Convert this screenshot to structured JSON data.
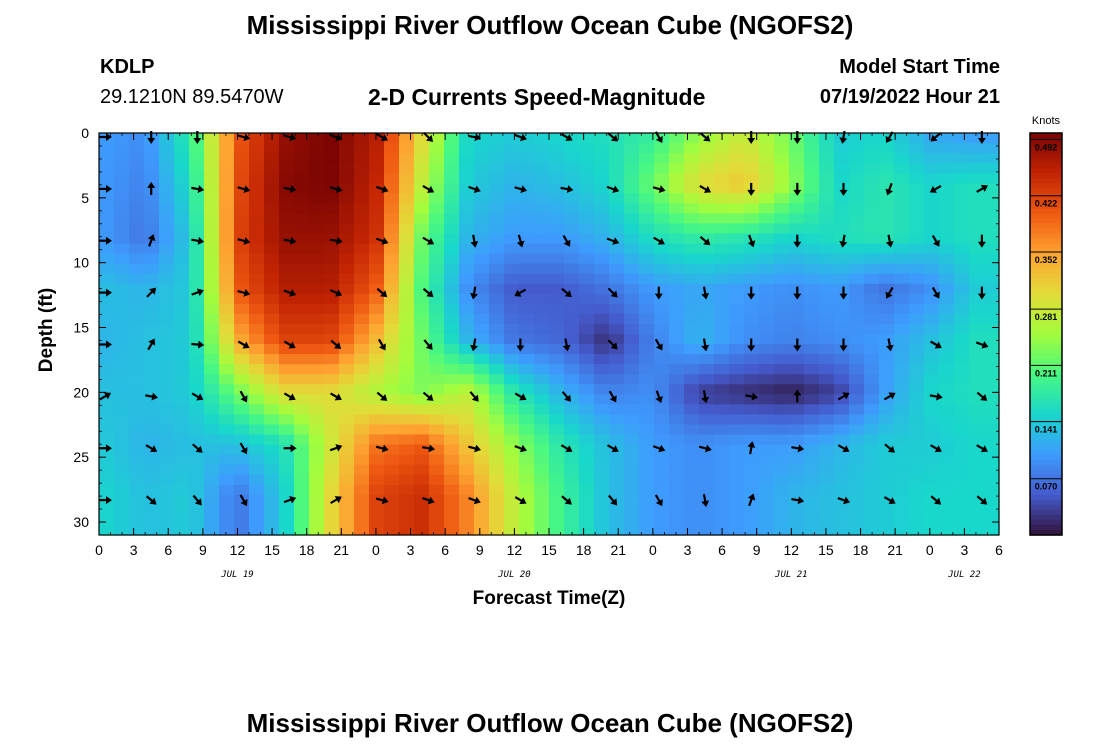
{
  "header": {
    "title": "Mississippi River Outflow Ocean Cube (NGOFS2)",
    "station": "KDLP",
    "coords": "29.1210N  89.5470W",
    "subtitle": "2-D Currents Speed-Magnitude",
    "model_start_label": "Model Start Time",
    "model_start_value": "07/19/2022 Hour 21",
    "footer_title": "Mississippi River Outflow Ocean Cube (NGOFS2)"
  },
  "chart_data": {
    "type": "heatmap",
    "title": "2-D Currents Speed-Magnitude",
    "xlabel": "Forecast Time(Z)",
    "ylabel": "Depth (ft)",
    "xlim": [
      0,
      78
    ],
    "ylim": [
      0,
      31
    ],
    "x_hours_start": 0,
    "x_tick_hours": [
      0,
      3,
      6,
      9,
      12,
      15,
      18,
      21,
      24,
      27,
      30,
      33,
      36,
      39,
      42,
      45,
      48,
      51,
      54,
      57,
      60,
      63,
      66,
      69,
      72,
      75,
      78
    ],
    "x_tick_labels": [
      "0",
      "3",
      "6",
      "9",
      "12",
      "15",
      "18",
      "21",
      "0",
      "3",
      "6",
      "9",
      "12",
      "15",
      "18",
      "21",
      "0",
      "3",
      "6",
      "9",
      "12",
      "15",
      "18",
      "21",
      "0",
      "3",
      "6"
    ],
    "y_ticks": [
      0,
      5,
      10,
      15,
      20,
      25,
      30
    ],
    "y_tick_labels": [
      "0",
      "5",
      "10",
      "15",
      "20",
      "25",
      "30"
    ],
    "day_labels": [
      {
        "text": "JUL 19",
        "hour": 12
      },
      {
        "text": "JUL 20",
        "hour": 36
      },
      {
        "text": "JUL 21",
        "hour": 60
      },
      {
        "text": "JUL 22",
        "hour": 75
      }
    ],
    "colorbar": {
      "unit": "Knots",
      "min": 0.0,
      "max": 0.5,
      "ticks": [
        0.492,
        0.422,
        0.352,
        0.281,
        0.211,
        0.141,
        0.07
      ],
      "tick_labels": [
        "0.492",
        "0.422",
        "0.352",
        "0.281",
        "0.211",
        "0.141",
        "0.070"
      ]
    },
    "arrow_times": [
      0,
      4,
      8,
      12,
      16,
      20,
      24,
      28,
      32,
      36,
      40,
      44,
      48,
      52,
      56,
      60,
      64,
      68,
      72,
      76
    ],
    "arrow_depths": [
      0,
      4,
      8,
      12,
      16,
      20,
      24,
      28
    ],
    "speed_grid_times": [
      0,
      4,
      8,
      12,
      16,
      20,
      24,
      28,
      32,
      36,
      40,
      44,
      48,
      52,
      56,
      60,
      64,
      68,
      72,
      76
    ],
    "speed_grid_depths": [
      0,
      4,
      8,
      12,
      16,
      20,
      24,
      28
    ],
    "speed_grid": [
      [
        0.1,
        0.09,
        0.18,
        0.4,
        0.48,
        0.5,
        0.46,
        0.3,
        0.15,
        0.14,
        0.15,
        0.16,
        0.18,
        0.24,
        0.28,
        0.22,
        0.14,
        0.15,
        0.11,
        0.1
      ],
      [
        0.1,
        0.08,
        0.16,
        0.41,
        0.49,
        0.5,
        0.45,
        0.27,
        0.14,
        0.12,
        0.13,
        0.15,
        0.22,
        0.3,
        0.32,
        0.24,
        0.15,
        0.17,
        0.15,
        0.16
      ],
      [
        0.1,
        0.07,
        0.14,
        0.42,
        0.48,
        0.48,
        0.44,
        0.22,
        0.12,
        0.1,
        0.1,
        0.12,
        0.16,
        0.18,
        0.17,
        0.15,
        0.16,
        0.17,
        0.15,
        0.16
      ],
      [
        0.13,
        0.12,
        0.14,
        0.4,
        0.46,
        0.46,
        0.4,
        0.2,
        0.09,
        0.05,
        0.05,
        0.07,
        0.1,
        0.11,
        0.1,
        0.09,
        0.1,
        0.07,
        0.09,
        0.14
      ],
      [
        0.12,
        0.13,
        0.14,
        0.34,
        0.42,
        0.42,
        0.33,
        0.22,
        0.12,
        0.07,
        0.06,
        0.02,
        0.08,
        0.12,
        0.09,
        0.08,
        0.09,
        0.1,
        0.13,
        0.16
      ],
      [
        0.13,
        0.13,
        0.14,
        0.22,
        0.3,
        0.3,
        0.26,
        0.23,
        0.27,
        0.17,
        0.12,
        0.08,
        0.09,
        0.03,
        0.02,
        0.01,
        0.03,
        0.1,
        0.15,
        0.16
      ],
      [
        0.14,
        0.12,
        0.13,
        0.13,
        0.16,
        0.28,
        0.38,
        0.4,
        0.32,
        0.24,
        0.17,
        0.13,
        0.1,
        0.09,
        0.1,
        0.1,
        0.12,
        0.14,
        0.14,
        0.15
      ],
      [
        0.15,
        0.13,
        0.14,
        0.07,
        0.14,
        0.3,
        0.42,
        0.44,
        0.37,
        0.27,
        0.19,
        0.13,
        0.1,
        0.09,
        0.1,
        0.12,
        0.13,
        0.14,
        0.15,
        0.15
      ]
    ],
    "arrow_angles_deg": [
      [
        0,
        90,
        90,
        15,
        15,
        20,
        30,
        45,
        10,
        20,
        30,
        40,
        60,
        40,
        90,
        90,
        100,
        120,
        140,
        90
      ],
      [
        0,
        -90,
        10,
        15,
        10,
        15,
        20,
        30,
        20,
        15,
        10,
        20,
        15,
        30,
        90,
        90,
        90,
        110,
        150,
        -30
      ],
      [
        0,
        -70,
        10,
        15,
        10,
        10,
        20,
        30,
        80,
        75,
        60,
        20,
        30,
        40,
        70,
        90,
        100,
        80,
        60,
        90
      ],
      [
        0,
        -45,
        -20,
        15,
        20,
        25,
        40,
        40,
        100,
        150,
        40,
        45,
        90,
        80,
        90,
        90,
        90,
        120,
        60,
        90
      ],
      [
        0,
        -60,
        5,
        30,
        30,
        40,
        60,
        50,
        100,
        90,
        80,
        45,
        60,
        80,
        90,
        90,
        90,
        80,
        30,
        20
      ],
      [
        -30,
        10,
        30,
        60,
        30,
        30,
        40,
        40,
        50,
        30,
        50,
        60,
        70,
        80,
        10,
        -90,
        -30,
        -30,
        10,
        40
      ],
      [
        0,
        30,
        40,
        60,
        0,
        -20,
        15,
        10,
        15,
        20,
        30,
        30,
        20,
        15,
        -80,
        10,
        30,
        40,
        30,
        30
      ],
      [
        0,
        40,
        50,
        60,
        -20,
        -30,
        15,
        20,
        20,
        30,
        40,
        50,
        60,
        80,
        -70,
        10,
        20,
        30,
        40,
        40
      ]
    ]
  }
}
